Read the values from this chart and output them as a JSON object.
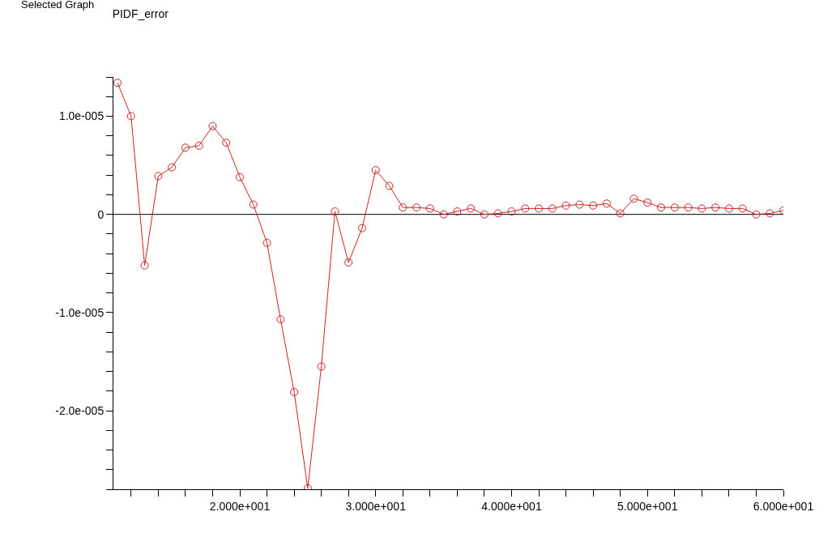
{
  "chart_data": {
    "type": "line",
    "title": "PIDF_error",
    "annotations": [
      "Selected Graph"
    ],
    "x": [
      11,
      12,
      13,
      14,
      15,
      16,
      17,
      18,
      19,
      20,
      21,
      22,
      23,
      24,
      25,
      26,
      27,
      28,
      29,
      30,
      31,
      32,
      33,
      34,
      35,
      36,
      37,
      38,
      39,
      40,
      41,
      42,
      43,
      44,
      45,
      46,
      47,
      48,
      49,
      50,
      51,
      52,
      53,
      54,
      55,
      56,
      57,
      58,
      59,
      60
    ],
    "series": [
      {
        "color": "#cc2222",
        "values": [
          1.34e-05,
          1e-05,
          -5.2e-06,
          3.9e-06,
          4.8e-06,
          6.8e-06,
          7e-06,
          9e-06,
          7.3e-06,
          3.8e-06,
          1e-06,
          -2.9e-06,
          -1.07e-05,
          -1.81e-05,
          -2.79e-05,
          -1.55e-05,
          3e-07,
          -4.9e-06,
          -1.4e-06,
          4.5e-06,
          2.9e-06,
          7e-07,
          7e-07,
          6e-07,
          0.0,
          3e-07,
          6e-07,
          0.0,
          1e-07,
          3e-07,
          6e-07,
          6e-07,
          6e-07,
          9e-07,
          1e-06,
          9e-07,
          1.1e-06,
          1e-07,
          1.6e-06,
          1.2e-06,
          7e-07,
          7e-07,
          7e-07,
          6e-07,
          7e-07,
          6e-07,
          6e-07,
          0.0,
          1e-07,
          4e-07
        ]
      }
    ],
    "xlim": [
      10.7,
      60
    ],
    "xticks": [
      {
        "value": 12,
        "label": null
      },
      {
        "value": 14,
        "label": null
      },
      {
        "value": 16,
        "label": null
      },
      {
        "value": 18,
        "label": null
      },
      {
        "value": 20,
        "label": "2.000e+001"
      },
      {
        "value": 22,
        "label": null
      },
      {
        "value": 24,
        "label": null
      },
      {
        "value": 26,
        "label": null
      },
      {
        "value": 28,
        "label": null
      },
      {
        "value": 30,
        "label": "3.000e+001"
      },
      {
        "value": 32,
        "label": null
      },
      {
        "value": 34,
        "label": null
      },
      {
        "value": 36,
        "label": null
      },
      {
        "value": 38,
        "label": null
      },
      {
        "value": 40,
        "label": "4.000e+001"
      },
      {
        "value": 42,
        "label": null
      },
      {
        "value": 44,
        "label": null
      },
      {
        "value": 46,
        "label": null
      },
      {
        "value": 48,
        "label": null
      },
      {
        "value": 50,
        "label": "5.000e+001"
      },
      {
        "value": 52,
        "label": null
      },
      {
        "value": 54,
        "label": null
      },
      {
        "value": 56,
        "label": null
      },
      {
        "value": 58,
        "label": null
      },
      {
        "value": 60,
        "label": "6.000e+001"
      }
    ],
    "ylim": [
      -2.8e-05,
      1.4e-05
    ],
    "yticks": [
      {
        "value": -2.8e-05,
        "label": null
      },
      {
        "value": -2.6e-05,
        "label": null
      },
      {
        "value": -2.4e-05,
        "label": null
      },
      {
        "value": -2.2e-05,
        "label": null
      },
      {
        "value": -2e-05,
        "label": "-2.0e-005"
      },
      {
        "value": -1.8e-05,
        "label": null
      },
      {
        "value": -1.6e-05,
        "label": null
      },
      {
        "value": -1.4e-05,
        "label": null
      },
      {
        "value": -1.2e-05,
        "label": null
      },
      {
        "value": -1e-05,
        "label": "-1.0e-005"
      },
      {
        "value": -8e-06,
        "label": null
      },
      {
        "value": -6e-06,
        "label": null
      },
      {
        "value": -4e-06,
        "label": null
      },
      {
        "value": -2e-06,
        "label": null
      },
      {
        "value": 0,
        "label": "0"
      },
      {
        "value": 2e-06,
        "label": null
      },
      {
        "value": 4e-06,
        "label": null
      },
      {
        "value": 6e-06,
        "label": null
      },
      {
        "value": 8e-06,
        "label": null
      },
      {
        "value": 1e-05,
        "label": "1.0e-005"
      },
      {
        "value": 1.2e-05,
        "label": null
      },
      {
        "value": 1.4e-05,
        "label": null
      }
    ],
    "ref_lines": [
      {
        "axis": "y",
        "value": 0,
        "color": "#000000"
      }
    ],
    "grid": false,
    "legend": false,
    "marker": "circle",
    "line_style": "solid"
  }
}
